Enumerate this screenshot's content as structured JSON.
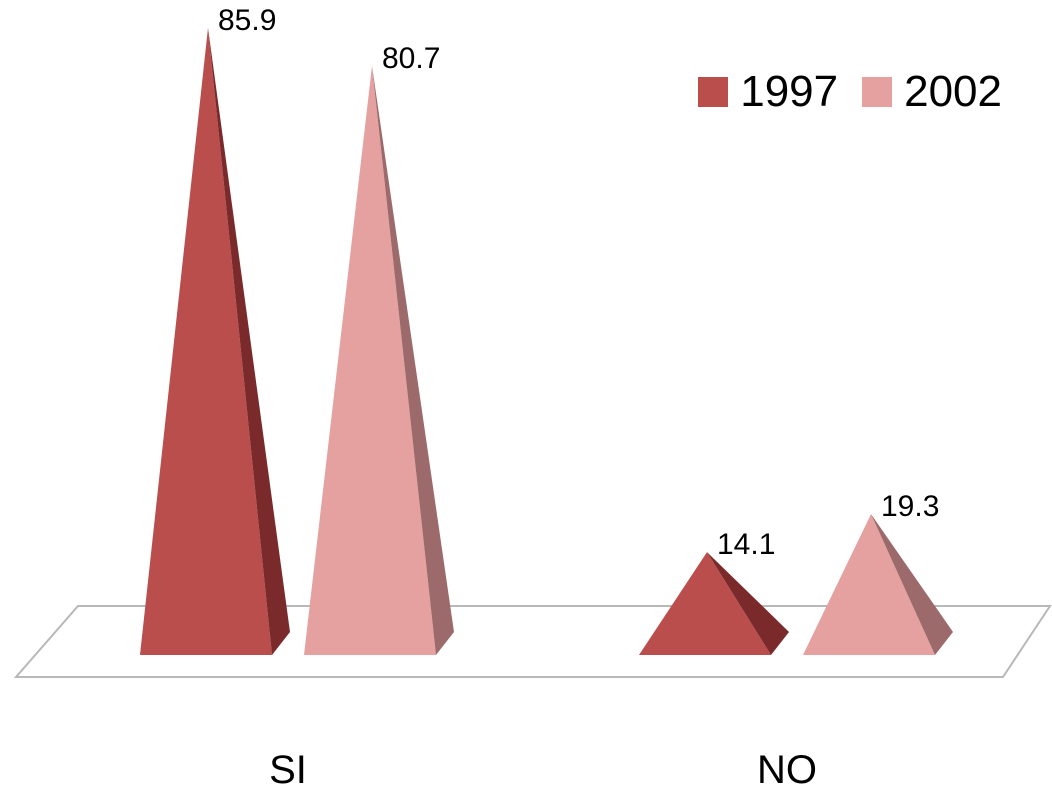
{
  "chart_data": {
    "type": "bar",
    "subtype": "3d-pyramid",
    "categories": [
      "SI",
      "NO"
    ],
    "series": [
      {
        "name": "1997",
        "values": [
          85.9,
          14.1
        ],
        "color": "#b94e4c",
        "side_color": "#7a2a2a"
      },
      {
        "name": "2002",
        "values": [
          80.7,
          19.3
        ],
        "color": "#e5a0a0",
        "side_color": "#9c6a6a"
      }
    ],
    "ylim": [
      0,
      90
    ],
    "legend": "top-right",
    "data_labels": true,
    "grid": false
  }
}
